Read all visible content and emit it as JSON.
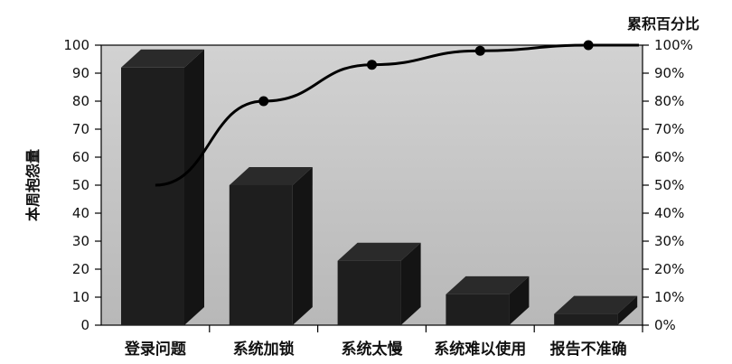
{
  "chart_data": {
    "type": "bar",
    "categories": [
      "登录问题",
      "系统加锁",
      "系统太慢",
      "系统难以使用",
      "报告不准确"
    ],
    "series": [
      {
        "values": [
          92,
          50,
          23,
          11,
          4
        ],
        "chart_type": "bar",
        "axis": "left"
      },
      {
        "values": [
          50,
          80,
          93,
          98,
          100
        ],
        "chart_type": "line",
        "axis": "right"
      }
    ],
    "ylabel": "本周抱怨量",
    "ylabel_right": "累积百分比",
    "ylim": [
      0,
      100
    ],
    "yticks": [
      "0",
      "10",
      "20",
      "30",
      "40",
      "50",
      "60",
      "70",
      "80",
      "90",
      "100"
    ],
    "ylim_right": [
      0,
      100
    ],
    "yticks_right": [
      "0%",
      "10%",
      "20%",
      "30%",
      "40%",
      "50%",
      "60%",
      "70%",
      "80%",
      "90%",
      "100%"
    ],
    "grid": false,
    "bar_style": "3d",
    "legend": "none"
  },
  "colors": {
    "plot_background": "#c8c8c8",
    "bar_front": "#1e1e1e",
    "bar_side": "#141414",
    "bar_top": "#2a2a2a",
    "line": "#000000",
    "axis": "#000000"
  }
}
